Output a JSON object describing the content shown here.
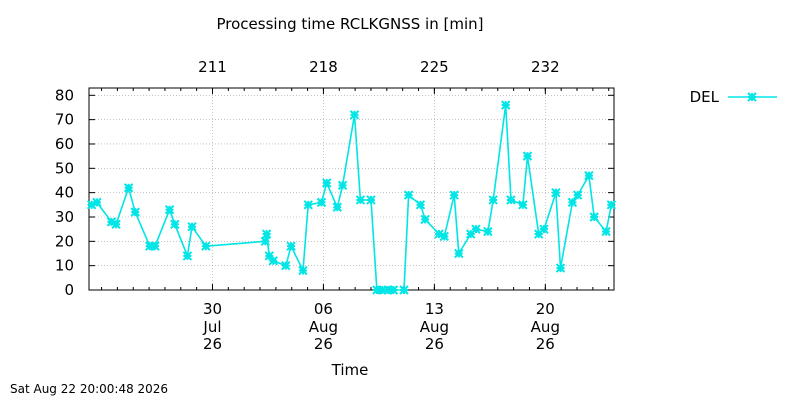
{
  "chart_data": {
    "type": "line",
    "title": "Processing time RCLKGNSS in [min]",
    "xlabel": "Time",
    "ylabel": "",
    "ylim": [
      0,
      83
    ],
    "yticks": [
      0,
      10,
      20,
      30,
      40,
      50,
      60,
      70,
      80
    ],
    "xlim": [
      "2026-07-22T05:00",
      "2026-08-24T08:00"
    ],
    "x_ticks": [
      {
        "date": "2026-07-30",
        "day": "30",
        "month": "Jul",
        "year": "26"
      },
      {
        "date": "2026-08-06",
        "day": "06",
        "month": "Aug",
        "year": "26"
      },
      {
        "date": "2026-08-13",
        "day": "13",
        "month": "Aug",
        "year": "26"
      },
      {
        "date": "2026-08-20",
        "day": "20",
        "month": "Aug",
        "year": "26"
      }
    ],
    "x2_ticks": [
      {
        "date": "2026-07-30",
        "label": "211"
      },
      {
        "date": "2026-08-06",
        "label": "218"
      },
      {
        "date": "2026-08-13",
        "label": "225"
      },
      {
        "date": "2026-08-20",
        "label": "232"
      }
    ],
    "grid": true,
    "legend": "right",
    "series": [
      {
        "name": "DEL",
        "color": "#00e5e5",
        "marker": "star",
        "points": [
          [
            "2026-07-22T09:00",
            35
          ],
          [
            "2026-07-22T17:00",
            36
          ],
          [
            "2026-07-23T15:00",
            28
          ],
          [
            "2026-07-23T22:00",
            27
          ],
          [
            "2026-07-24T17:00",
            42
          ],
          [
            "2026-07-25T03:00",
            32
          ],
          [
            "2026-07-26T01:00",
            18
          ],
          [
            "2026-07-26T09:00",
            18
          ],
          [
            "2026-07-27T07:00",
            33
          ],
          [
            "2026-07-27T15:00",
            27
          ],
          [
            "2026-07-28T10:00",
            14
          ],
          [
            "2026-07-28T17:00",
            26
          ],
          [
            "2026-07-29T14:00",
            18
          ],
          [
            "2026-08-02T08:00",
            20
          ],
          [
            "2026-08-02T10:00",
            23
          ],
          [
            "2026-08-02T14:00",
            14
          ],
          [
            "2026-08-02T20:00",
            12
          ],
          [
            "2026-08-03T15:00",
            10
          ],
          [
            "2026-08-03T23:00",
            18
          ],
          [
            "2026-08-04T17:00",
            8
          ],
          [
            "2026-08-05T01:00",
            35
          ],
          [
            "2026-08-05T21:00",
            36
          ],
          [
            "2026-08-06T05:00",
            44
          ],
          [
            "2026-08-06T21:00",
            34
          ],
          [
            "2026-08-07T05:00",
            43
          ],
          [
            "2026-08-07T23:00",
            72
          ],
          [
            "2026-08-08T08:00",
            37
          ],
          [
            "2026-08-09T00:00",
            37
          ],
          [
            "2026-08-09T09:00",
            0
          ],
          [
            "2026-08-09T17:00",
            0
          ],
          [
            "2026-08-10T02:00",
            0
          ],
          [
            "2026-08-10T10:00",
            0
          ],
          [
            "2026-08-11T02:00",
            0
          ],
          [
            "2026-08-11T09:00",
            39
          ],
          [
            "2026-08-12T03:00",
            35
          ],
          [
            "2026-08-12T10:00",
            29
          ],
          [
            "2026-08-13T07:00",
            23
          ],
          [
            "2026-08-13T15:00",
            22
          ],
          [
            "2026-08-14T06:00",
            39
          ],
          [
            "2026-08-14T13:00",
            15
          ],
          [
            "2026-08-15T07:00",
            23
          ],
          [
            "2026-08-15T15:00",
            25
          ],
          [
            "2026-08-16T09:00",
            24
          ],
          [
            "2026-08-16T17:00",
            37
          ],
          [
            "2026-08-17T12:00",
            76
          ],
          [
            "2026-08-17T20:00",
            37
          ],
          [
            "2026-08-18T14:00",
            35
          ],
          [
            "2026-08-18T21:00",
            55
          ],
          [
            "2026-08-19T14:00",
            23
          ],
          [
            "2026-08-19T22:00",
            25
          ],
          [
            "2026-08-20T16:00",
            40
          ],
          [
            "2026-08-20T23:00",
            9
          ],
          [
            "2026-08-21T17:00",
            36
          ],
          [
            "2026-08-22T01:00",
            39
          ],
          [
            "2026-08-22T18:00",
            47
          ],
          [
            "2026-08-23T02:00",
            30
          ],
          [
            "2026-08-23T20:00",
            24
          ],
          [
            "2026-08-24T04:00",
            35
          ]
        ]
      }
    ]
  },
  "footer": {
    "timestamp": "Sat Aug 22 20:00:48 2026"
  }
}
